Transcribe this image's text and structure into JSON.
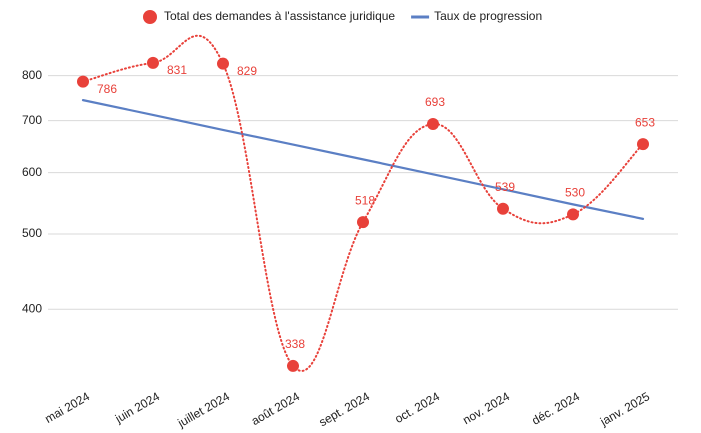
{
  "chart_data": {
    "type": "line",
    "categories": [
      "mai 2024",
      "juin 2024",
      "juillet 2024",
      "août 2024",
      "sept. 2024",
      "oct. 2024",
      "nov. 2024",
      "déc. 2024",
      "janv. 2025"
    ],
    "series": [
      {
        "name": "Total des demandes à l'assistance juridique",
        "color": "#e8413a",
        "style": "dotted-smooth",
        "values": [
          786,
          831,
          829,
          338,
          518,
          693,
          539,
          530,
          653
        ]
      },
      {
        "name": "Taux de progression",
        "color": "#5b7fc4",
        "style": "solid",
        "values": [
          744,
          712,
          681,
          652,
          624,
          597,
          571,
          546,
          523
        ]
      }
    ],
    "ylim": [
      330,
      900
    ],
    "yticks": [
      400,
      500,
      600,
      700,
      800
    ],
    "log_scale": true,
    "grid": true,
    "legend": "top"
  }
}
